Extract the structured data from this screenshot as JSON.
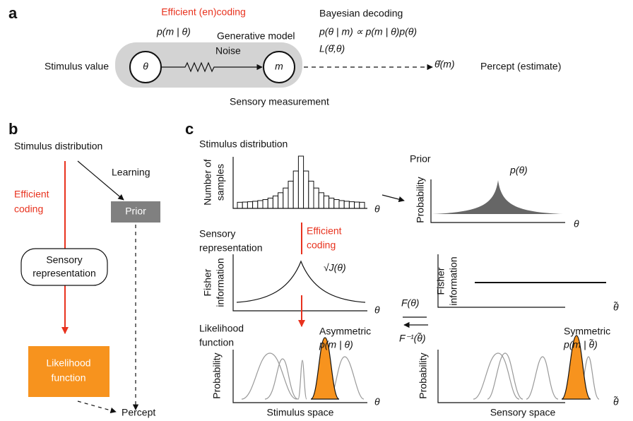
{
  "panel_a": {
    "label": "a",
    "encoding_title": "Efficient (en)coding",
    "encoding_formula": "p(m | θ)",
    "generative_model": "Generative model",
    "noise": "Noise",
    "stimulus_value": "Stimulus value",
    "theta": "θ",
    "m": "m",
    "decoding_title": "Bayesian decoding",
    "posterior": "p(θ | m) ∝ p(m | θ)p(θ)",
    "loss": "L(θ̂,θ)",
    "estimate": "θ̂(m)",
    "percept": "Percept (estimate)",
    "measurement": "Sensory measurement"
  },
  "panel_b": {
    "label": "b",
    "stimulus_distribution": "Stimulus distribution",
    "learning": "Learning",
    "efficient_coding": [
      "Efficient",
      "coding"
    ],
    "prior": "Prior",
    "sensory_representation": [
      "Sensory",
      "representation"
    ],
    "likelihood": [
      "Likelihood",
      "function"
    ],
    "percept": "Percept"
  },
  "panel_c": {
    "label": "c",
    "stimulus_distribution": "Stimulus distribution",
    "number_of_samples": [
      "Number of",
      "samples"
    ],
    "hist_axis": "θ",
    "prior": "Prior",
    "prior_formula": "p(θ)",
    "prior_ylabel": "Probability",
    "prior_axis": "θ",
    "sensory_representation": [
      "Sensory",
      "representation"
    ],
    "efficient_coding": [
      "Efficient",
      "coding"
    ],
    "fisher_ylabel": [
      "Fisher",
      "information"
    ],
    "fisher_formula": "√J(θ)",
    "fisher_axis": "θ",
    "transform": "F(θ)",
    "inverse_transform": "F⁻¹(θ̃)",
    "fisher2_ylabel": [
      "Fisher",
      "information"
    ],
    "fisher2_axis": "θ̃",
    "likelihood": [
      "Likelihood",
      "function"
    ],
    "asymmetric": "Asymmetric",
    "asym_formula": "p(m | θ)",
    "lik_ylabel": "Probability",
    "lik_axis": "θ",
    "stimulus_space": "Stimulus space",
    "symmetric": "Symmetric",
    "sym_formula": "p(m | θ̃)",
    "lik2_ylabel": "Probability",
    "lik2_axis": "θ̃",
    "sensory_space": "Sensory space"
  }
}
